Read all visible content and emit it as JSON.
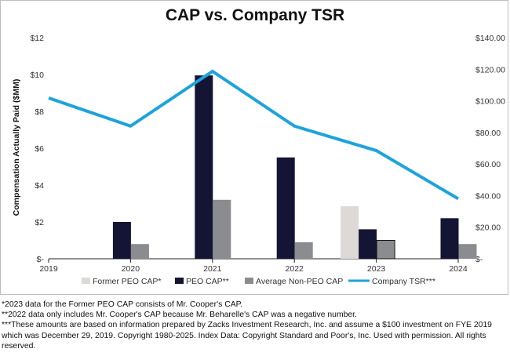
{
  "chart_data": {
    "type": "bar",
    "title": "CAP vs. Company TSR",
    "ylabel": "Compensation Actually Paid ($MM)",
    "x_ticks": [
      "2019",
      "2020",
      "2021",
      "2022",
      "2023",
      "2024"
    ],
    "categories": [
      "2020",
      "2021",
      "2022",
      "2023",
      "2024"
    ],
    "y_left": {
      "min": 0,
      "max": 12,
      "ticks": [
        0,
        2,
        4,
        6,
        8,
        10,
        12
      ],
      "tick_labels": [
        "$-",
        "$2",
        "$4",
        "$6",
        "$8",
        "$10",
        "$12"
      ]
    },
    "y_right": {
      "min": 0,
      "max": 140,
      "ticks": [
        0,
        20,
        40,
        60,
        80,
        100,
        120,
        140
      ],
      "tick_labels": [
        "$-",
        "$20.00",
        "$40.00",
        "$60.00",
        "$80.00",
        "$100.00",
        "$120.00",
        "$140.00"
      ]
    },
    "series": [
      {
        "name": "Former PEO CAP*",
        "kind": "bar",
        "color": "#dcd9d6",
        "values": [
          null,
          null,
          null,
          2.85,
          null
        ]
      },
      {
        "name": "PEO CAP**",
        "kind": "bar",
        "color": "#141435",
        "values": [
          2.0,
          9.95,
          5.5,
          1.6,
          2.2
        ]
      },
      {
        "name": "Average Non-PEO CAP",
        "kind": "bar",
        "color": "#8a8c90",
        "values": [
          0.8,
          3.2,
          0.9,
          1.0,
          0.8
        ]
      },
      {
        "name": "Company TSR***",
        "kind": "line",
        "axis": "right",
        "color": "#1ea3dc",
        "x": [
          "2019",
          "2020",
          "2021",
          "2022",
          "2023",
          "2024"
        ],
        "values": [
          101.8,
          84,
          118.7,
          84,
          68.5,
          38
        ]
      }
    ],
    "legend_position": "bottom",
    "grid": false
  },
  "footnotes": [
    "*2023 data for the Former PEO CAP consists of Mr. Cooper's CAP.",
    "**2022 data only includes Mr. Cooper's CAP because Mr. Beharelle's CAP was a negative number.",
    "***These amounts are based on information prepared by Zacks Investment Research, Inc. and assume a $100 investment on FYE 2019 which was December 29, 2019. Copyright 1980-2025. Index Data: Copyright Standard and Poor's, Inc. Used with permission. All rights reserved."
  ]
}
